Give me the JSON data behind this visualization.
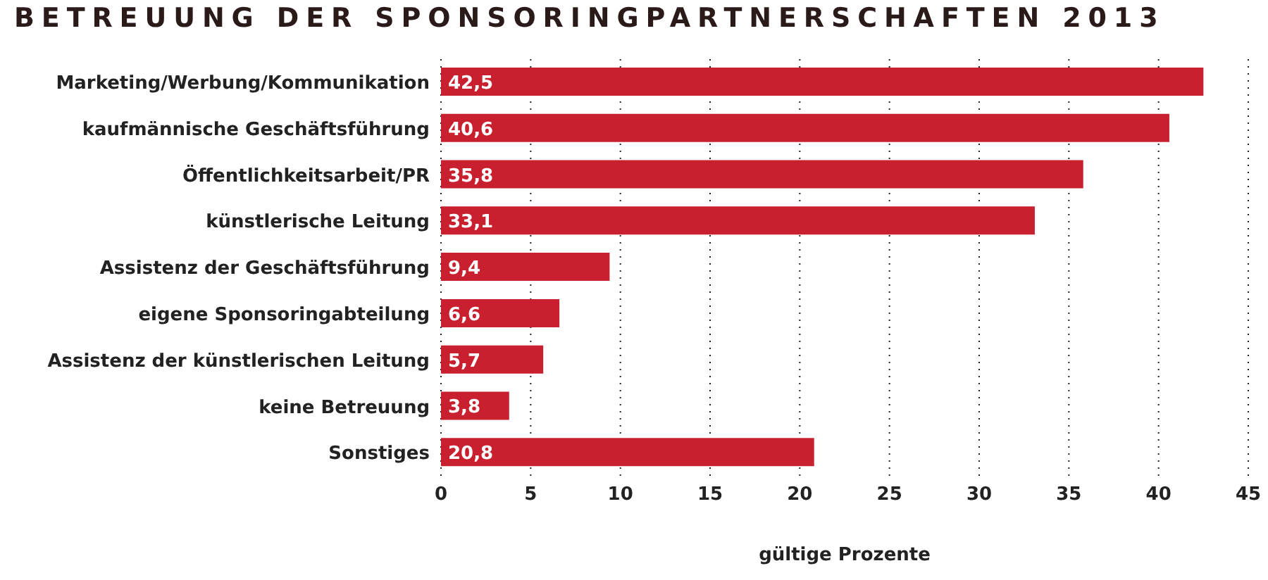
{
  "chart_data": {
    "type": "bar",
    "orientation": "horizontal",
    "title": "BETREUUNG DER SPONSORINGPARTNERSCHAFTEN 2013",
    "xlabel": "gültige Prozente",
    "categories": [
      "Marketing/Werbung/Kommunikation",
      "kaufmännische Geschäftsführung",
      "Öffentlichkeitsarbeit/PR",
      "künstlerische Leitung",
      "Assistenz der Geschäftsführung",
      "eigene Sponsoringabteilung",
      "Assistenz der künstlerischen Leitung",
      "keine Betreuung",
      "Sonstiges"
    ],
    "values": [
      42.5,
      40.6,
      35.8,
      33.1,
      9.4,
      6.6,
      5.7,
      3.8,
      20.8
    ],
    "value_labels": [
      "42,5",
      "40,6",
      "35,8",
      "33,1",
      "9,4",
      "6,6",
      "5,7",
      "3,8",
      "20,8"
    ],
    "color": "#c8202e",
    "xlim": [
      0,
      45
    ],
    "xticks": [
      0,
      5,
      10,
      15,
      20,
      25,
      30,
      35,
      40,
      45
    ],
    "grid": "x",
    "legend": false
  }
}
